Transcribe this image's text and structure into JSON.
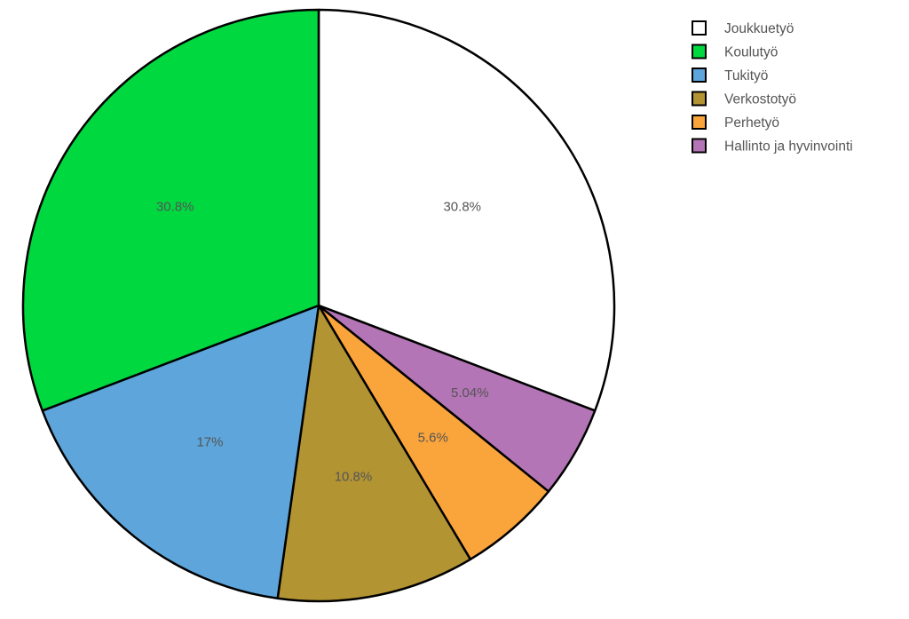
{
  "chart_data": {
    "type": "pie",
    "title": "",
    "slices": [
      {
        "name": "Joukkuetyö",
        "value": 30.8,
        "label": "30.8%",
        "color": "#ffffff"
      },
      {
        "name": "Hallinto ja hyvinvointi",
        "value": 5.04,
        "label": "5.04%",
        "color": "#b375b5"
      },
      {
        "name": "Perhetyö",
        "value": 5.6,
        "label": "5.6%",
        "color": "#faa43c"
      },
      {
        "name": "Verkostotyö",
        "value": 10.8,
        "label": "10.8%",
        "color": "#b39433"
      },
      {
        "name": "Tukityö",
        "value": 17,
        "label": "17%",
        "color": "#5da5da"
      },
      {
        "name": "Koulutyö",
        "value": 30.8,
        "label": "30.8%",
        "color": "#00d840"
      }
    ],
    "legend": {
      "placement": "top-right",
      "entries": [
        {
          "name": "Joukkuetyö",
          "color": "#ffffff"
        },
        {
          "name": "Koulutyö",
          "color": "#00d840"
        },
        {
          "name": "Tukityö",
          "color": "#5da5da"
        },
        {
          "name": "Verkostotyö",
          "color": "#b39433"
        },
        {
          "name": "Perhetyö",
          "color": "#faa43c"
        },
        {
          "name": "Hallinto ja hyvinvointi",
          "color": "#b375b5"
        }
      ]
    },
    "slice_border_color": "#000000",
    "start": "12 o'clock",
    "direction": "clockwise"
  }
}
